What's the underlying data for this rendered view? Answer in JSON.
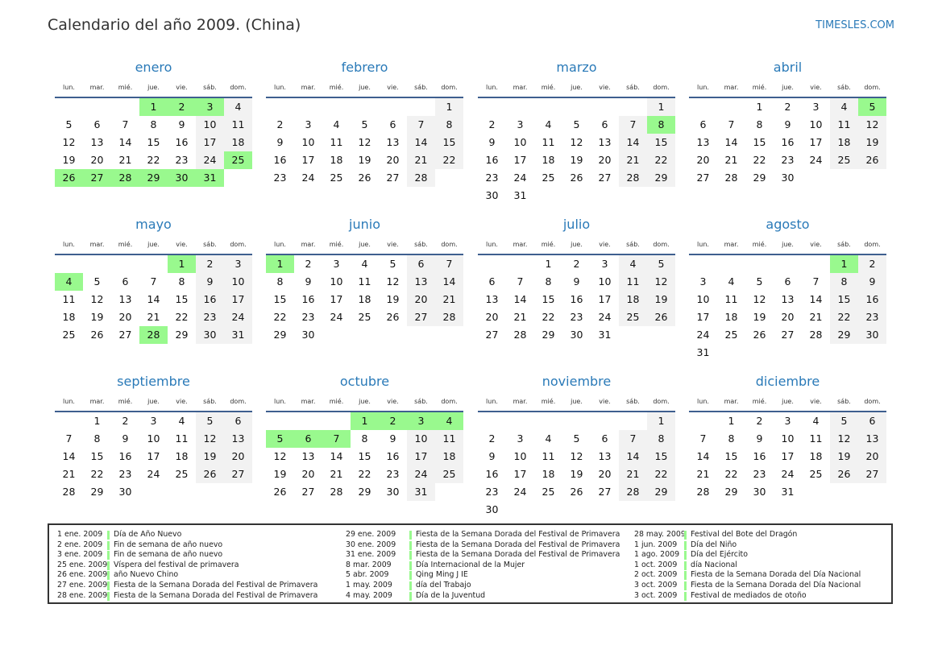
{
  "header": {
    "title": "Calendario del año 2009. (China)",
    "brand": "TIMESLES.COM"
  },
  "weekdays": [
    "lun.",
    "mar.",
    "mié.",
    "jue.",
    "vie.",
    "sáb.",
    "dom."
  ],
  "colors": {
    "holiday": "#99f98e",
    "weekend": "#f2f2f2",
    "accent": "#2a7ab8"
  },
  "months": [
    {
      "name": "enero",
      "offset": 3,
      "days": 31,
      "holidays": [
        1,
        2,
        3,
        25,
        26,
        27,
        28,
        29,
        30,
        31
      ]
    },
    {
      "name": "febrero",
      "offset": 6,
      "days": 28,
      "holidays": []
    },
    {
      "name": "marzo",
      "offset": 6,
      "days": 31,
      "holidays": [
        8
      ]
    },
    {
      "name": "abril",
      "offset": 2,
      "days": 30,
      "holidays": [
        5
      ]
    },
    {
      "name": "mayo",
      "offset": 4,
      "days": 31,
      "holidays": [
        1,
        4,
        28
      ]
    },
    {
      "name": "junio",
      "offset": 0,
      "days": 30,
      "holidays": [
        1
      ]
    },
    {
      "name": "julio",
      "offset": 2,
      "days": 31,
      "holidays": []
    },
    {
      "name": "agosto",
      "offset": 5,
      "days": 31,
      "holidays": [
        1
      ]
    },
    {
      "name": "septiembre",
      "offset": 1,
      "days": 30,
      "holidays": []
    },
    {
      "name": "octubre",
      "offset": 3,
      "days": 31,
      "holidays": [
        1,
        2,
        3,
        4,
        5,
        6,
        7
      ]
    },
    {
      "name": "noviembre",
      "offset": 6,
      "days": 30,
      "holidays": []
    },
    {
      "name": "diciembre",
      "offset": 1,
      "days": 31,
      "holidays": []
    }
  ],
  "legend": [
    [
      {
        "date": "1 ene. 2009",
        "name": "Día de Año Nuevo"
      },
      {
        "date": "2 ene. 2009",
        "name": "Fin de semana de año nuevo"
      },
      {
        "date": "3 ene. 2009",
        "name": "Fin de semana de año nuevo"
      },
      {
        "date": "25 ene. 2009",
        "name": "Víspera del festival de primavera"
      },
      {
        "date": "26 ene. 2009",
        "name": "año Nuevo Chino"
      },
      {
        "date": "27 ene. 2009",
        "name": "Fiesta de la Semana Dorada del Festival de Primavera"
      },
      {
        "date": "28 ene. 2009",
        "name": "Fiesta de la Semana Dorada del Festival de Primavera"
      }
    ],
    [
      {
        "date": "29 ene. 2009",
        "name": "Fiesta de la Semana Dorada del Festival de Primavera"
      },
      {
        "date": "30 ene. 2009",
        "name": "Fiesta de la Semana Dorada del Festival de Primavera"
      },
      {
        "date": "31 ene. 2009",
        "name": "Fiesta de la Semana Dorada del Festival de Primavera"
      },
      {
        "date": "8 mar. 2009",
        "name": "Día Internacional de la Mujer"
      },
      {
        "date": "5 abr. 2009",
        "name": "Qing Ming J IE"
      },
      {
        "date": "1 may. 2009",
        "name": "día del Trabajo"
      },
      {
        "date": "4 may. 2009",
        "name": "Día de la Juventud"
      }
    ],
    [
      {
        "date": "28 may. 2009",
        "name": "Festival del Bote del Dragón"
      },
      {
        "date": "1 jun. 2009",
        "name": "Día del Niño"
      },
      {
        "date": "1 ago. 2009",
        "name": "Día del Ejército"
      },
      {
        "date": "1 oct. 2009",
        "name": "día Nacional"
      },
      {
        "date": "2 oct. 2009",
        "name": "Fiesta de la Semana Dorada del Día Nacional"
      },
      {
        "date": "3 oct. 2009",
        "name": "Fiesta de la Semana Dorada del Día Nacional"
      },
      {
        "date": "3 oct. 2009",
        "name": "Festival de mediados de otoño"
      }
    ]
  ]
}
